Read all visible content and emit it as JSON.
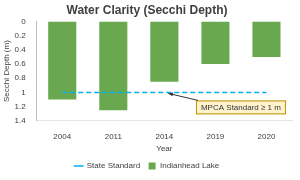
{
  "chart_data": {
    "type": "bar",
    "title": "Water Clarity (Secchi Depth)",
    "x_label": "Year",
    "y_label": "Secchi Depth (m)",
    "categories": [
      "2004",
      "2011",
      "2014",
      "2019",
      "2020"
    ],
    "series": [
      {
        "name": "Indianhead Lake",
        "color": "#6aa84f",
        "values": [
          1.1,
          1.25,
          0.85,
          0.6,
          0.5
        ]
      },
      {
        "name": "State Standard",
        "type": "line",
        "color": "#00b0f0",
        "line_style": "dashed",
        "values": [
          1,
          1,
          1,
          1,
          1
        ]
      }
    ],
    "ylim": [
      0,
      1.4
    ],
    "yticks": [
      0,
      0.2,
      0.4,
      0.6,
      0.8,
      1,
      1.2,
      1.4
    ],
    "grid": false,
    "legend": "bottom",
    "annotations": [
      {
        "text": "MPCA Standard ≥ 1 m"
      }
    ]
  }
}
